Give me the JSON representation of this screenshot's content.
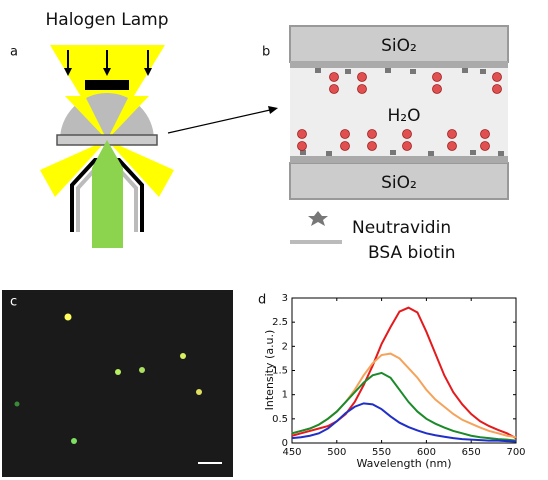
{
  "panels": {
    "a": {
      "label": "a",
      "title": "Halogen Lamp"
    },
    "b": {
      "label": "b",
      "top_layer": "SiO₂",
      "middle": "H₂O",
      "bottom_layer": "SiO₂",
      "legend": [
        "Neutravidin",
        "BSA biotin"
      ]
    },
    "c": {
      "label": "c"
    },
    "d": {
      "label": "d"
    }
  },
  "chart_data": {
    "type": "line",
    "xlabel": "Wavelength (nm)",
    "ylabel": "Intensity (a.u.)",
    "x": [
      450,
      460,
      470,
      480,
      490,
      500,
      510,
      520,
      530,
      540,
      550,
      560,
      570,
      580,
      590,
      600,
      610,
      620,
      630,
      640,
      650,
      660,
      670,
      680,
      690,
      700
    ],
    "series": [
      {
        "color": "#e41a1c",
        "values": [
          0.15,
          0.2,
          0.25,
          0.3,
          0.35,
          0.45,
          0.6,
          0.85,
          1.2,
          1.6,
          2.05,
          2.4,
          2.72,
          2.8,
          2.7,
          2.3,
          1.85,
          1.4,
          1.05,
          0.8,
          0.6,
          0.45,
          0.35,
          0.27,
          0.2,
          0.1
        ]
      },
      {
        "color": "#f5a35a",
        "values": [
          0.2,
          0.25,
          0.3,
          0.38,
          0.5,
          0.65,
          0.85,
          1.1,
          1.4,
          1.65,
          1.82,
          1.85,
          1.75,
          1.55,
          1.35,
          1.1,
          0.9,
          0.75,
          0.6,
          0.48,
          0.4,
          0.32,
          0.25,
          0.2,
          0.15,
          0.12
        ]
      },
      {
        "color": "#1a8a2a",
        "values": [
          0.2,
          0.25,
          0.3,
          0.38,
          0.5,
          0.65,
          0.85,
          1.05,
          1.25,
          1.4,
          1.45,
          1.35,
          1.1,
          0.85,
          0.65,
          0.5,
          0.4,
          0.32,
          0.25,
          0.2,
          0.15,
          0.12,
          0.1,
          0.08,
          0.07,
          0.05
        ]
      },
      {
        "color": "#1f2fc8",
        "values": [
          0.1,
          0.12,
          0.15,
          0.2,
          0.3,
          0.45,
          0.62,
          0.75,
          0.82,
          0.8,
          0.7,
          0.55,
          0.42,
          0.33,
          0.26,
          0.2,
          0.16,
          0.13,
          0.1,
          0.08,
          0.07,
          0.06,
          0.05,
          0.05,
          0.04,
          0.03
        ]
      }
    ],
    "xlim": [
      450,
      700
    ],
    "xticks": [
      450,
      500,
      550,
      600,
      650,
      700
    ],
    "ylim": [
      0,
      3
    ],
    "yticks": [
      0,
      0.5,
      1,
      1.5,
      2,
      2.5,
      3
    ]
  }
}
